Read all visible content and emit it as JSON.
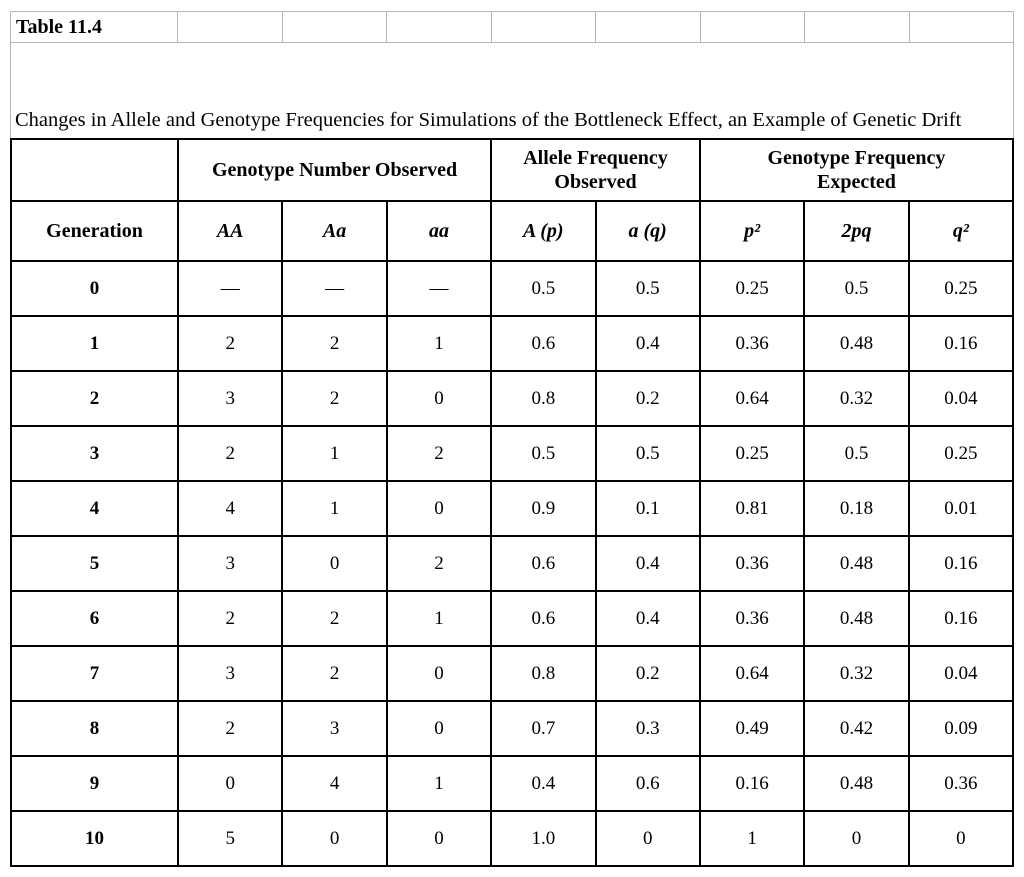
{
  "sheet": {
    "label": "Table 11.4"
  },
  "caption": "Changes in Allele and Genotype Frequencies for Simulations of the Bottleneck Effect, an Example of Genetic Drift",
  "table": {
    "col_groups": [
      {
        "label": "",
        "span": 1
      },
      {
        "label": "Genotype Number Observed",
        "span": 3
      },
      {
        "label": "Allele Frequency Observed",
        "span": 2
      },
      {
        "label": "Genotype Frequency Expected",
        "span": 3
      }
    ],
    "columns": [
      "Generation",
      "AA",
      "Aa",
      "aa",
      "A (p)",
      "a (q)",
      "p²",
      "2pq",
      "q²"
    ],
    "rows": [
      {
        "generation": "0",
        "values": [
          "—",
          "—",
          "—",
          "0.5",
          "0.5",
          "0.25",
          "0.5",
          "0.25"
        ]
      },
      {
        "generation": "1",
        "values": [
          "2",
          "2",
          "1",
          "0.6",
          "0.4",
          "0.36",
          "0.48",
          "0.16"
        ]
      },
      {
        "generation": "2",
        "values": [
          "3",
          "2",
          "0",
          "0.8",
          "0.2",
          "0.64",
          "0.32",
          "0.04"
        ]
      },
      {
        "generation": "3",
        "values": [
          "2",
          "1",
          "2",
          "0.5",
          "0.5",
          "0.25",
          "0.5",
          "0.25"
        ]
      },
      {
        "generation": "4",
        "values": [
          "4",
          "1",
          "0",
          "0.9",
          "0.1",
          "0.81",
          "0.18",
          "0.01"
        ]
      },
      {
        "generation": "5",
        "values": [
          "3",
          "0",
          "2",
          "0.6",
          "0.4",
          "0.36",
          "0.48",
          "0.16"
        ]
      },
      {
        "generation": "6",
        "values": [
          "2",
          "2",
          "1",
          "0.6",
          "0.4",
          "0.36",
          "0.48",
          "0.16"
        ]
      },
      {
        "generation": "7",
        "values": [
          "3",
          "2",
          "0",
          "0.8",
          "0.2",
          "0.64",
          "0.32",
          "0.04"
        ]
      },
      {
        "generation": "8",
        "values": [
          "2",
          "3",
          "0",
          "0.7",
          "0.3",
          "0.49",
          "0.42",
          "0.09"
        ]
      },
      {
        "generation": "9",
        "values": [
          "0",
          "4",
          "1",
          "0.4",
          "0.6",
          "0.16",
          "0.48",
          "0.36"
        ]
      },
      {
        "generation": "10",
        "values": [
          "5",
          "0",
          "0",
          "1.0",
          "0",
          "1",
          "0",
          "0"
        ]
      }
    ]
  }
}
